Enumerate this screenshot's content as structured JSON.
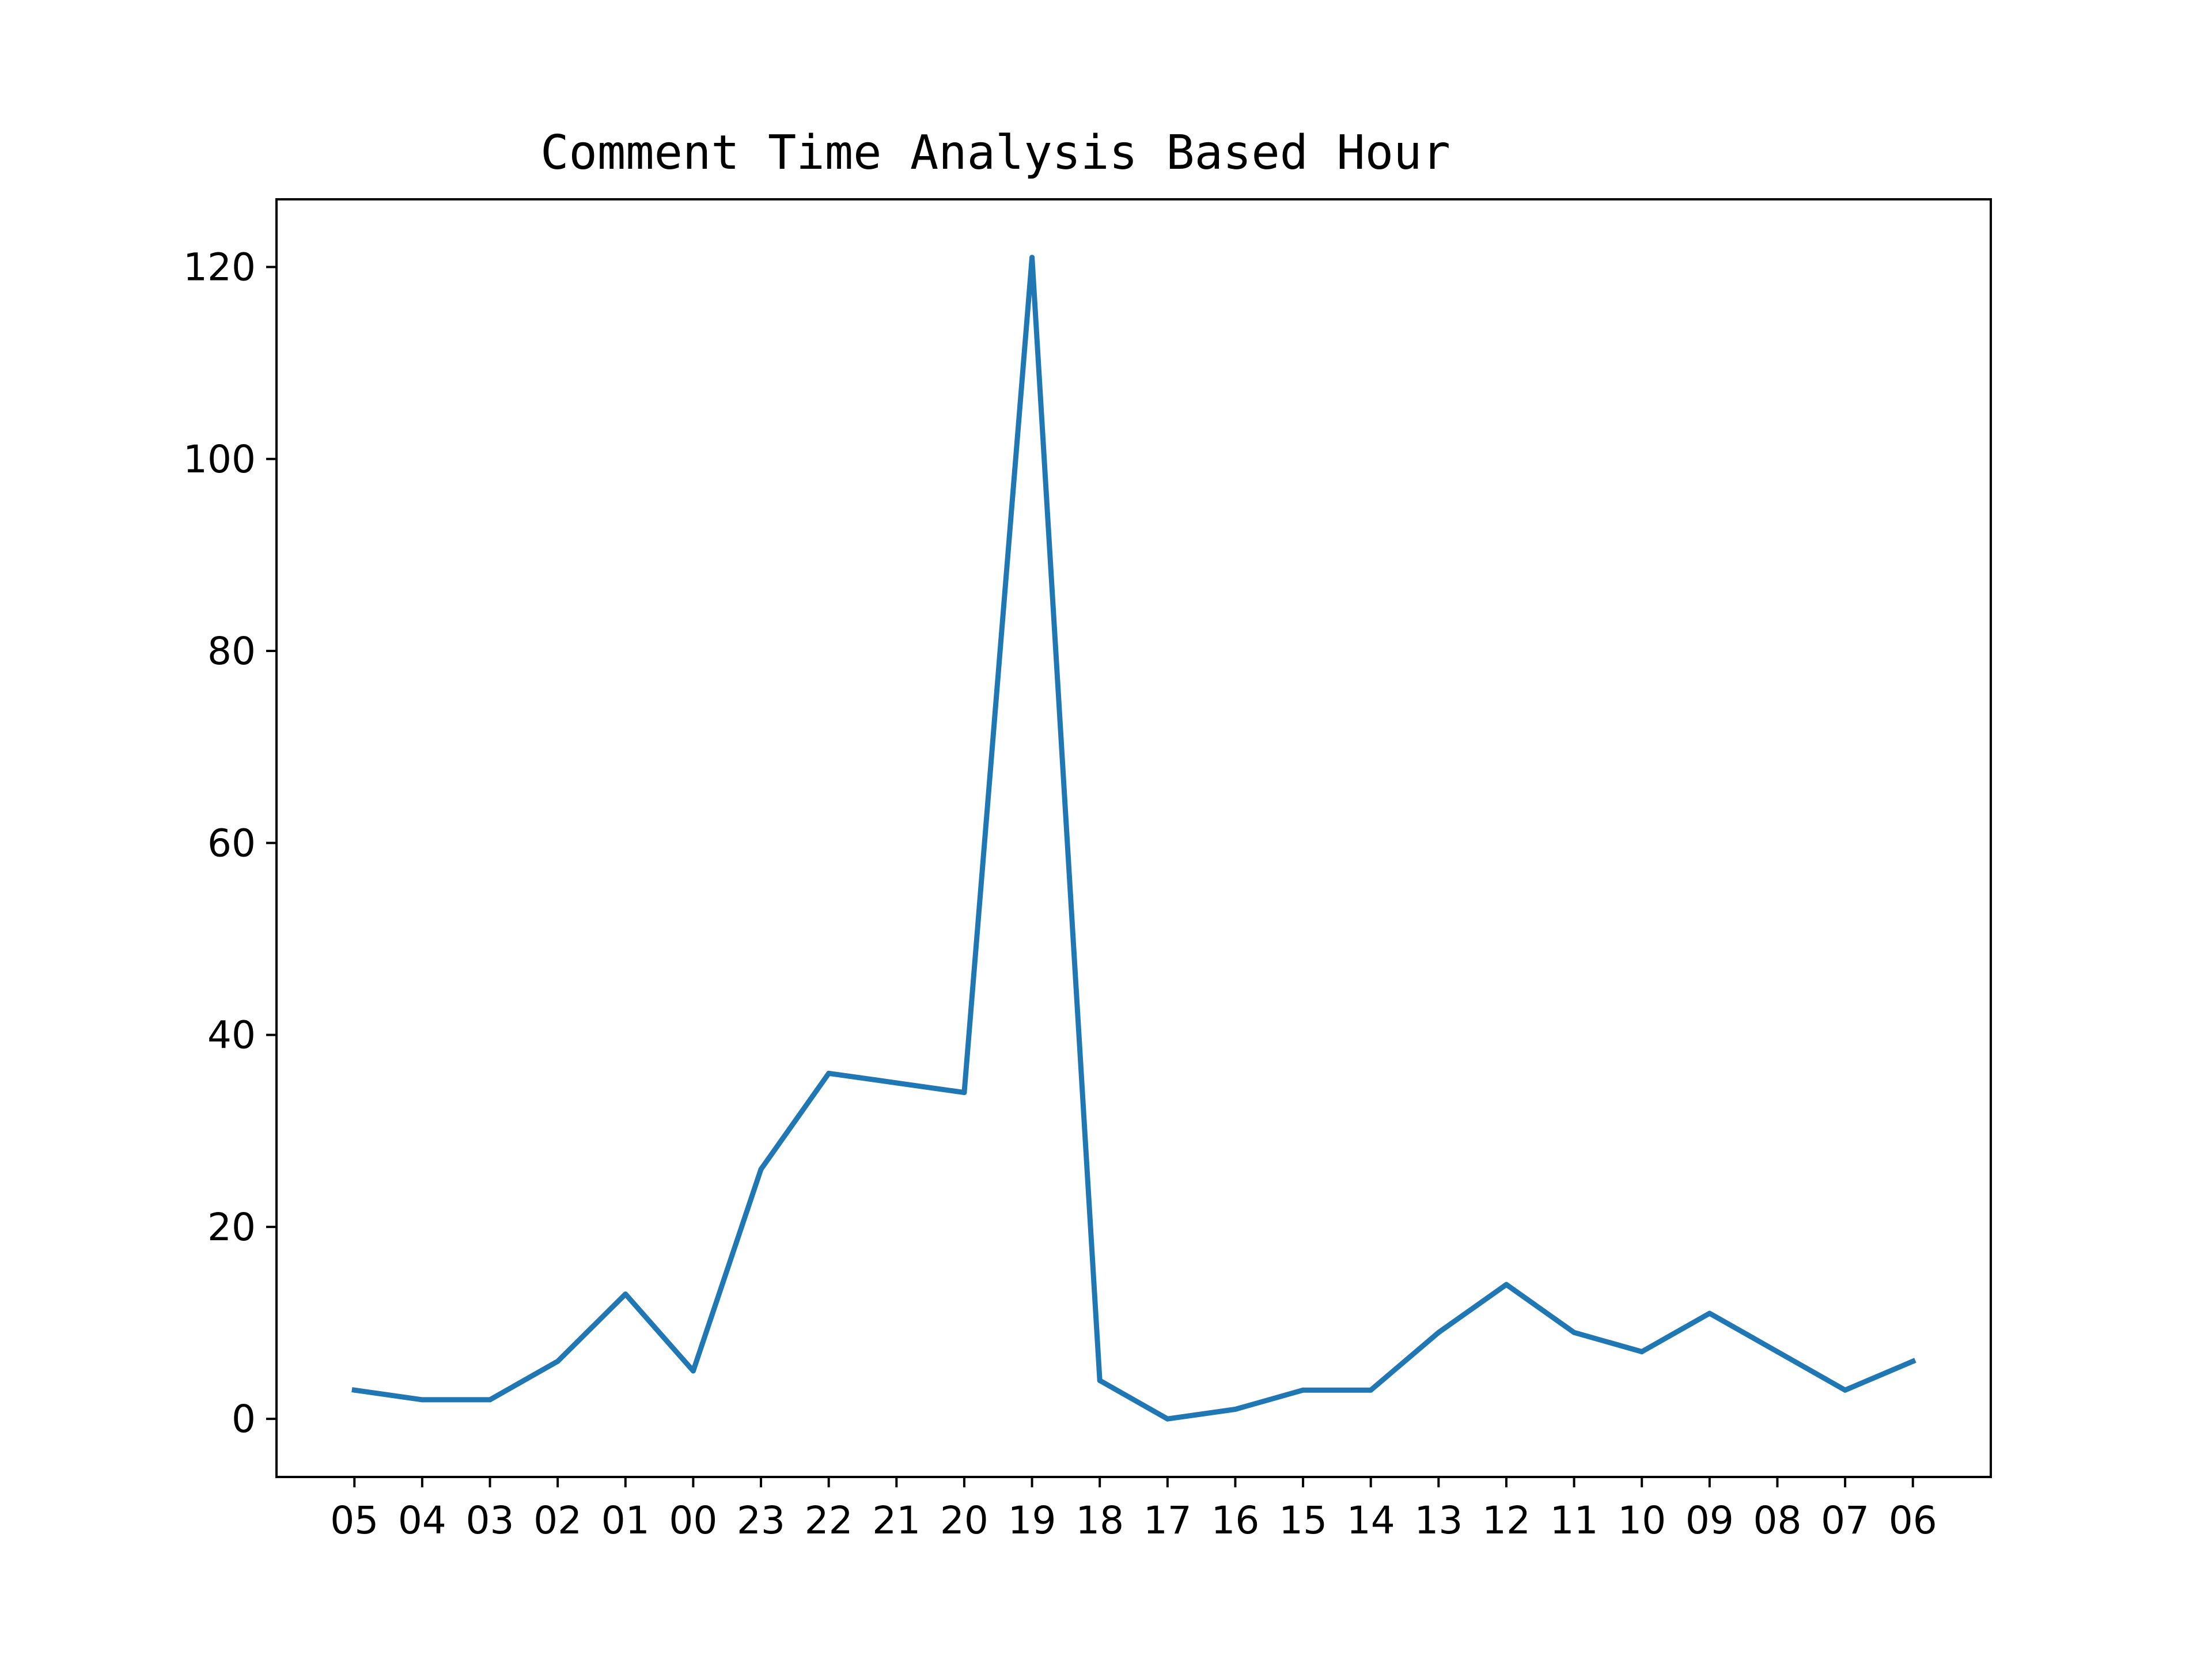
{
  "chart_data": {
    "type": "line",
    "title": "Comment Time Analysis Based Hour",
    "xlabel": "",
    "ylabel": "",
    "categories": [
      "05",
      "04",
      "03",
      "02",
      "01",
      "00",
      "23",
      "22",
      "21",
      "20",
      "19",
      "18",
      "17",
      "16",
      "15",
      "14",
      "13",
      "12",
      "11",
      "10",
      "09",
      "08",
      "07",
      "06"
    ],
    "series": [
      {
        "values": [
          3,
          2,
          2,
          6,
          13,
          5,
          26,
          36,
          35,
          34,
          121,
          4,
          0,
          1,
          3,
          3,
          9,
          14,
          9,
          7,
          11,
          7,
          3,
          6
        ],
        "color": "#1f77b4"
      }
    ],
    "ylim": [
      -6.05,
      127.05
    ],
    "yticks": [
      0,
      20,
      40,
      60,
      80,
      100,
      120
    ],
    "grid": false,
    "legend": "none"
  }
}
